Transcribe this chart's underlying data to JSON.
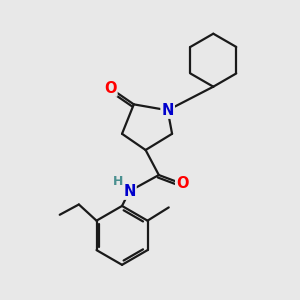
{
  "bg_color": "#e8e8e8",
  "bond_color": "#1a1a1a",
  "bond_width": 1.6,
  "atom_colors": {
    "N": "#0000cc",
    "O": "#ff0000",
    "H": "#4a9090",
    "C": "#1a1a1a"
  },
  "font_size_atom": 10.5,
  "font_size_H": 9.0,
  "xlim": [
    0,
    10
  ],
  "ylim": [
    0,
    10
  ]
}
